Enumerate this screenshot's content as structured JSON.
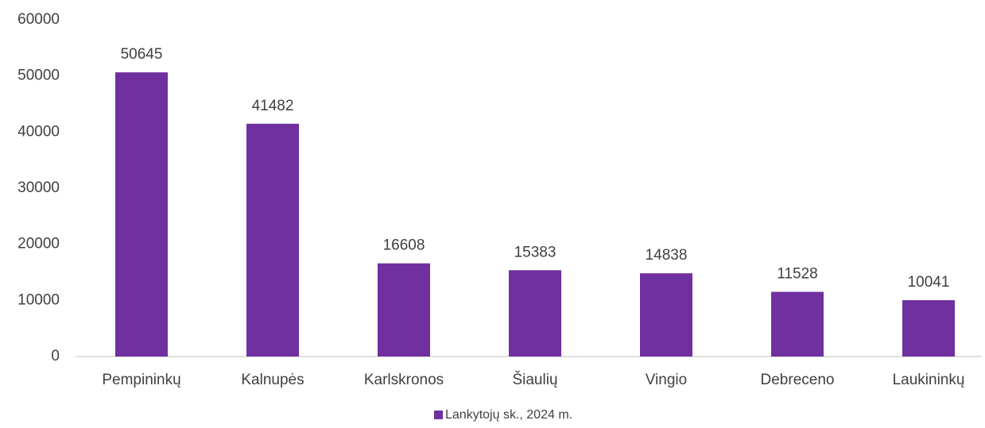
{
  "chart_data": {
    "type": "bar",
    "categories": [
      "Pempininkų",
      "Kalnupės",
      "Karlskronos",
      "Šiaulių",
      "Vingio",
      "Debreceno",
      "Laukininkų"
    ],
    "series": [
      {
        "name": "Lankytojų sk., 2024 m.",
        "color": "#7030a0",
        "values": [
          50645,
          41482,
          16608,
          15383,
          14838,
          11528,
          10041
        ]
      }
    ],
    "ylim": [
      0,
      60000
    ],
    "yticks": [
      0,
      10000,
      20000,
      30000,
      40000,
      50000,
      60000
    ],
    "grid": false,
    "legend": "bottom"
  }
}
